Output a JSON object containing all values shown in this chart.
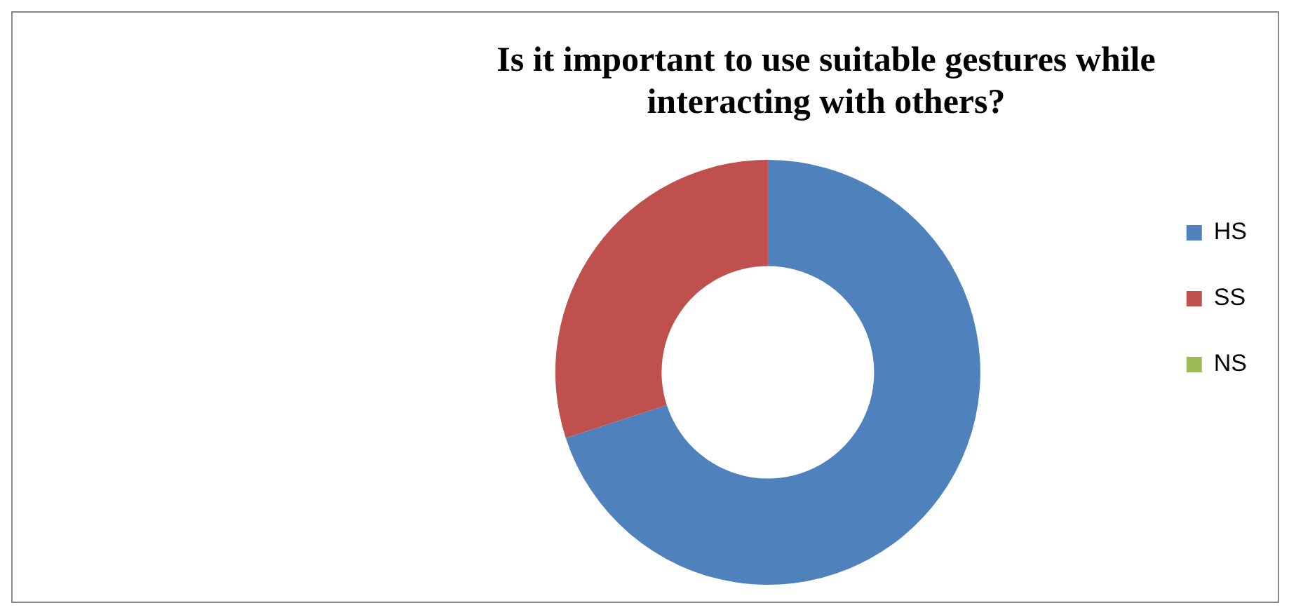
{
  "chart_data": {
    "type": "donut",
    "title": "Is it important to use suitable gestures while interacting with others?",
    "categories": [
      "HS",
      "SS",
      "NS"
    ],
    "values": [
      70,
      30,
      0
    ],
    "colors": [
      "#4f81bd",
      "#c0504d",
      "#9bbb59"
    ],
    "legend": "right"
  }
}
